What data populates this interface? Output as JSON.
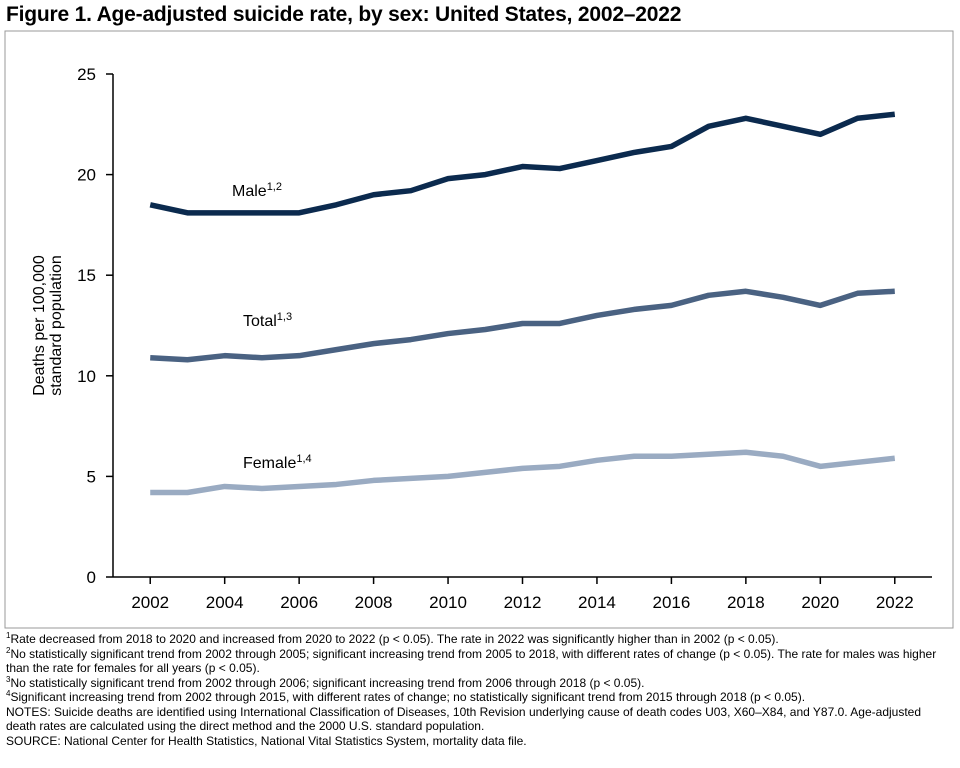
{
  "chart_data": {
    "type": "line",
    "title": "Figure 1. Age-adjusted suicide rate, by sex: United States, 2002–2022",
    "ylabel_lines": [
      "Deaths per 100,000",
      "standard population"
    ],
    "x": [
      2002,
      2003,
      2004,
      2005,
      2006,
      2007,
      2008,
      2009,
      2010,
      2011,
      2012,
      2013,
      2014,
      2015,
      2016,
      2017,
      2018,
      2019,
      2020,
      2021,
      2022
    ],
    "series": [
      {
        "name": "Male",
        "note_ref": "1,2",
        "color": "#0b2a4e",
        "values": [
          18.5,
          18.1,
          18.1,
          18.1,
          18.1,
          18.5,
          19.0,
          19.2,
          19.8,
          20.0,
          20.4,
          20.3,
          20.7,
          21.1,
          21.4,
          22.4,
          22.8,
          22.4,
          22.0,
          22.8,
          23.0
        ]
      },
      {
        "name": "Total",
        "note_ref": "1,3",
        "color": "#4a6282",
        "values": [
          10.9,
          10.8,
          11.0,
          10.9,
          11.0,
          11.3,
          11.6,
          11.8,
          12.1,
          12.3,
          12.6,
          12.6,
          13.0,
          13.3,
          13.5,
          14.0,
          14.2,
          13.9,
          13.5,
          14.1,
          14.2
        ]
      },
      {
        "name": "Female",
        "note_ref": "1,4",
        "color": "#9aabc2",
        "values": [
          4.2,
          4.2,
          4.5,
          4.4,
          4.5,
          4.6,
          4.8,
          4.9,
          5.0,
          5.2,
          5.4,
          5.5,
          5.8,
          6.0,
          6.0,
          6.1,
          6.2,
          6.0,
          5.5,
          5.7,
          5.9
        ]
      }
    ],
    "xlim": [
      2001,
      2023
    ],
    "xticks": [
      2002,
      2004,
      2006,
      2008,
      2010,
      2012,
      2014,
      2016,
      2018,
      2020,
      2022
    ],
    "ylim": [
      0,
      25
    ],
    "yticks": [
      0,
      5,
      10,
      15,
      20,
      25
    ],
    "grid": false,
    "footnotes": [
      {
        "mark": "1",
        "text": "Rate decreased from 2018 to 2020 and increased from 2020 to 2022 (p < 0.05). The rate in 2022 was significantly higher than in 2002 (p < 0.05)."
      },
      {
        "mark": "2",
        "text": "No statistically significant trend from 2002 through 2005; significant increasing trend from 2005 to 2018, with different rates of change (p < 0.05). The rate for males was higher than the rate for females for all years (p < 0.05)."
      },
      {
        "mark": "3",
        "text": "No statistically significant trend from 2002 through 2006; significant increasing trend from 2006 through 2018 (p < 0.05)."
      },
      {
        "mark": "4",
        "text": "Significant increasing trend from 2002 through 2015, with different rates of change; no statistically significant trend from 2015 through 2018 (p < 0.05)."
      }
    ],
    "notes": [
      "NOTES: Suicide deaths are identified using International Classification of Diseases, 10th Revision underlying cause of death codes U03, X60–X84, and Y87.0. Age-adjusted death rates are calculated using the direct method and the 2000 U.S. standard population.",
      "SOURCE: National Center for Health Statistics, National Vital Statistics System, mortality data file."
    ]
  }
}
